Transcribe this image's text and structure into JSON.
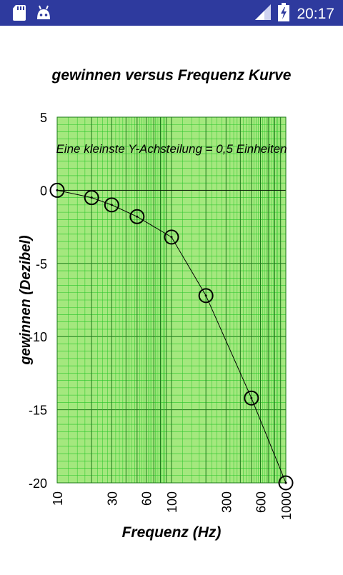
{
  "status_bar": {
    "time": "20:17",
    "icons": [
      "sd-card-icon",
      "android-icon",
      "signal-icon",
      "battery-charging-icon"
    ],
    "background": "#2e3a9e"
  },
  "chart_data": {
    "type": "line",
    "title": "gewinnen versus Frequenz Kurve",
    "annotation": "Eine kleinste Y-Achsteilung = 0,5 Einheiten",
    "xlabel": "Frequenz (Hz)",
    "ylabel": "gewinnen (Dezibel)",
    "x_scale": "log",
    "xlim": [
      10,
      1000
    ],
    "ylim": [
      -20,
      5
    ],
    "x_ticks": [
      10,
      30,
      60,
      100,
      300,
      600,
      1000
    ],
    "x_tick_labels": [
      "10",
      "30",
      "60",
      "100",
      "300",
      "600",
      "1000"
    ],
    "y_ticks": [
      5,
      0,
      -5,
      -10,
      -15,
      -20
    ],
    "y_tick_labels": [
      "5",
      "0",
      "-5",
      "-10",
      "-15",
      "-20"
    ],
    "grid": true,
    "colors": {
      "plot_background": "#a4e87e",
      "grid_minor": "#27c52a",
      "grid_major": "#1d7a1a",
      "line": "#000000",
      "marker": "#000000"
    },
    "series": [
      {
        "x": [
          10,
          20,
          30,
          50,
          100,
          200,
          500,
          1000
        ],
        "y": [
          0,
          -0.5,
          -1.0,
          -1.8,
          -3.2,
          -7.2,
          -14.2,
          -20.0
        ]
      }
    ]
  }
}
